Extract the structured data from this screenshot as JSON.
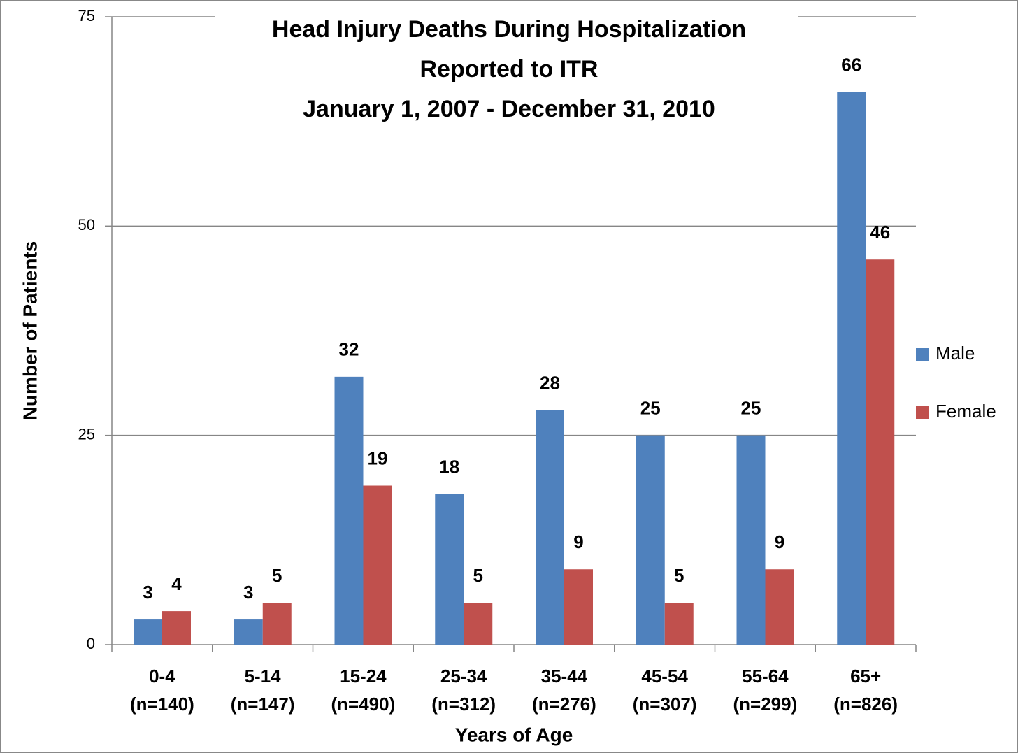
{
  "chart_data": {
    "type": "bar",
    "title": [
      "Head Injury Deaths During Hospitalization",
      "Reported to ITR",
      "January 1, 2007 - December 31, 2010"
    ],
    "x_label": "Years of Age",
    "y_label": "Number of Patients",
    "categories": [
      [
        "0-4",
        "(n=140)"
      ],
      [
        "5-14",
        "(n=147)"
      ],
      [
        "15-24",
        "(n=490)"
      ],
      [
        "25-34",
        "(n=312)"
      ],
      [
        "35-44",
        "(n=276)"
      ],
      [
        "45-54",
        "(n=307)"
      ],
      [
        "55-64",
        "(n=299)"
      ],
      [
        "65+",
        "(n=826)"
      ]
    ],
    "series": [
      {
        "name": "Male",
        "color": "#4f81bd",
        "values": [
          3,
          3,
          32,
          18,
          28,
          25,
          25,
          66
        ]
      },
      {
        "name": "Female",
        "color": "#c0504d",
        "values": [
          4,
          5,
          19,
          5,
          9,
          5,
          9,
          46
        ]
      }
    ],
    "ylim": [
      0,
      75
    ],
    "yticks": [
      0,
      25,
      50,
      75
    ],
    "grid": true,
    "legend": "right"
  }
}
